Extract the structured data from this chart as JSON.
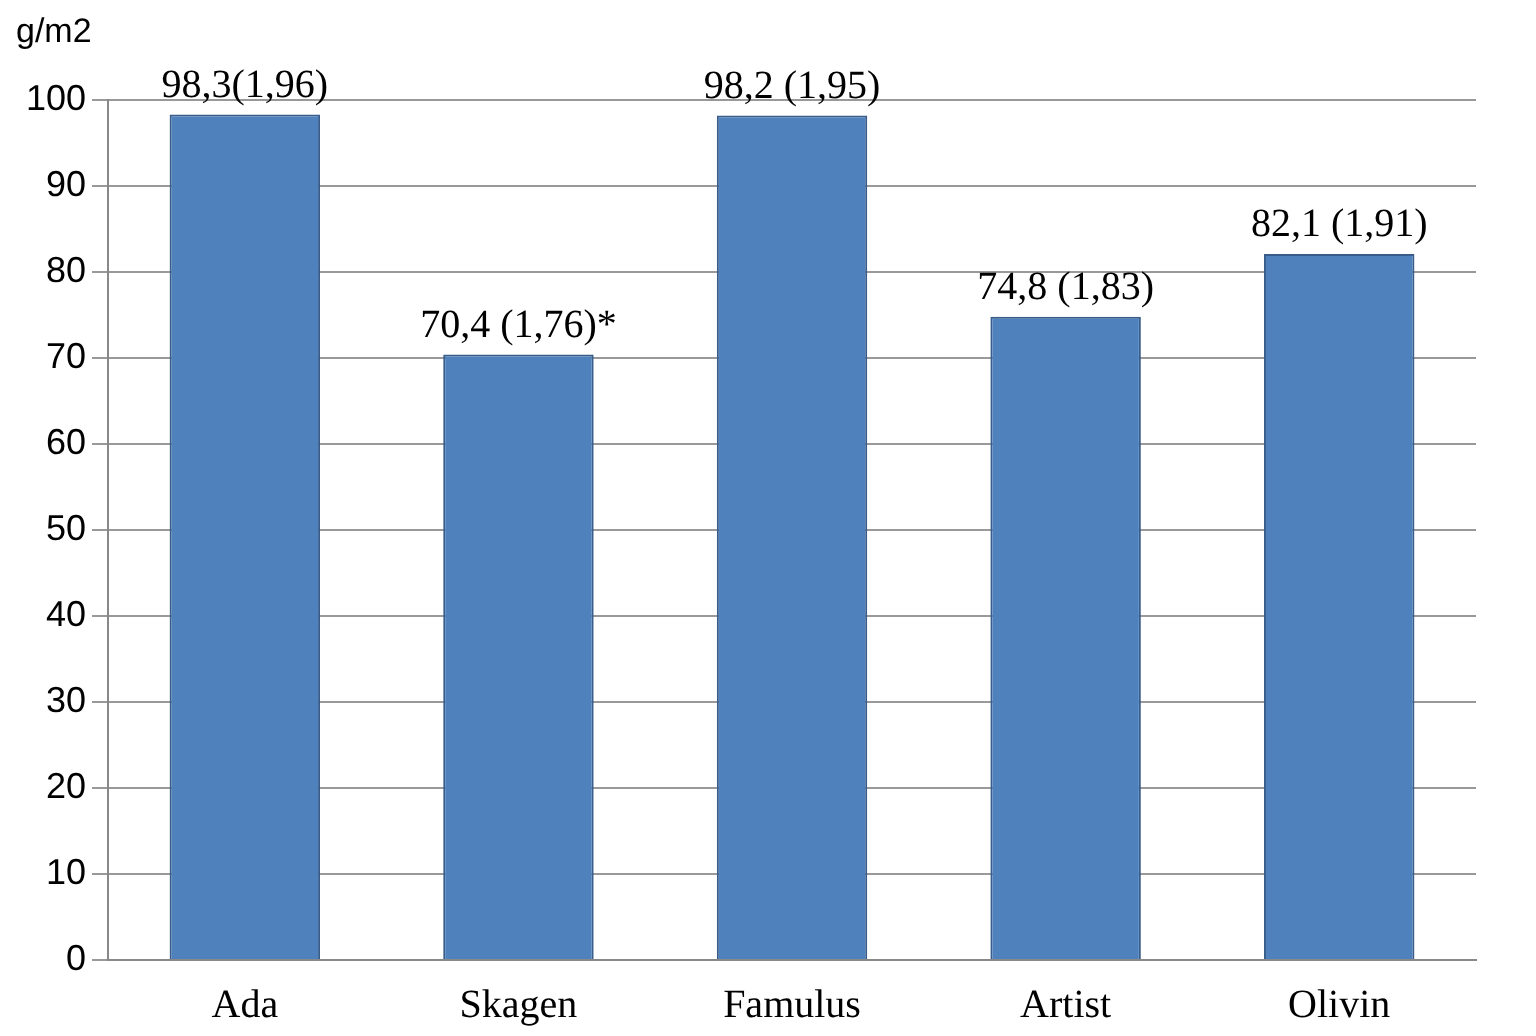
{
  "chart_data": {
    "type": "bar",
    "ylabel": "g/m2",
    "categories": [
      "Ada",
      "Skagen",
      "Famulus",
      "Artist",
      "Olivin"
    ],
    "values": [
      98.3,
      70.4,
      98.2,
      74.8,
      82.1
    ],
    "value_labels": [
      "98,3(1,96)",
      "70,4 (1,76)*",
      "98,2 (1,95)",
      "74,8 (1,83)",
      "82,1 (1,91)"
    ],
    "color": "#4f81bd",
    "ylim": [
      0,
      100
    ],
    "yticks": [
      0,
      10,
      20,
      30,
      40,
      50,
      60,
      70,
      80,
      90,
      100
    ],
    "grid": "y",
    "legend": false
  }
}
